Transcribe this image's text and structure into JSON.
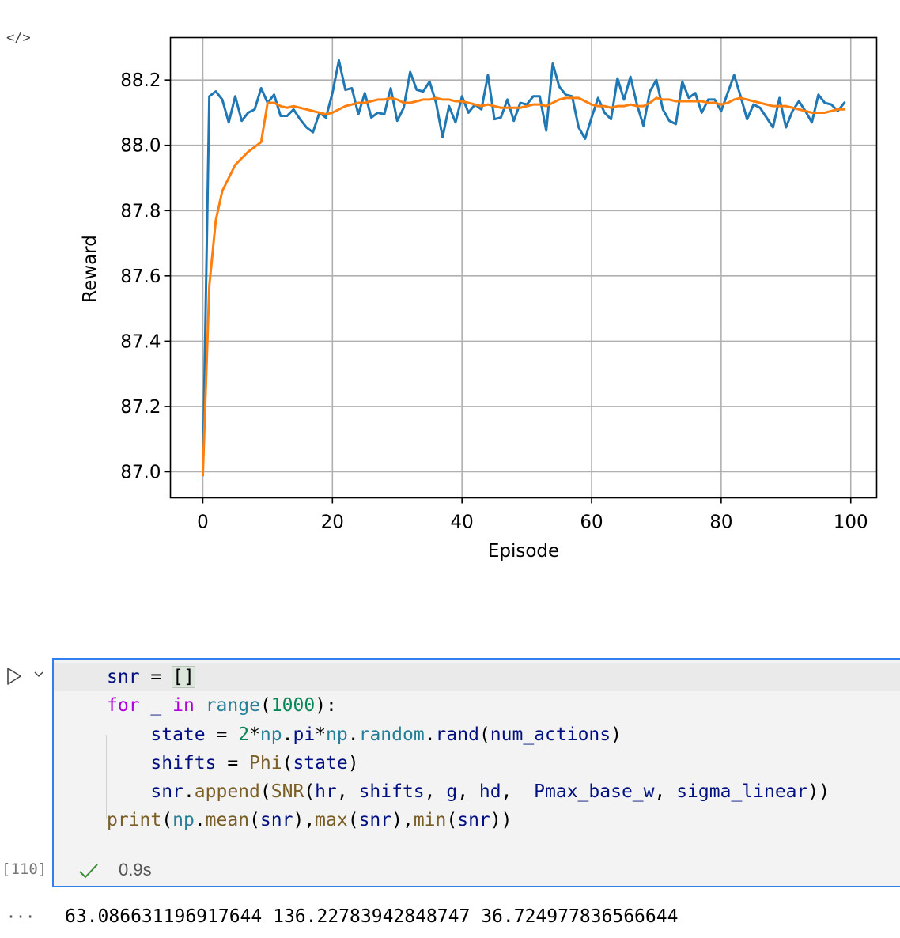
{
  "output_cell": {
    "code_icon": "code-icon",
    "chart_data": {
      "type": "line",
      "xlabel": "Episode",
      "ylabel": "Reward",
      "xlim": [
        -5,
        104
      ],
      "ylim": [
        86.92,
        88.33
      ],
      "xticks": [
        0,
        20,
        40,
        60,
        80,
        100
      ],
      "yticks": [
        87.0,
        87.2,
        87.4,
        87.6,
        87.8,
        88.0,
        88.2
      ],
      "ytick_labels": [
        "87.0",
        "87.2",
        "87.4",
        "87.6",
        "87.8",
        "88.0",
        "88.2"
      ],
      "grid": true,
      "series": [
        {
          "color": "#1f77b4",
          "x": [
            0,
            1,
            2,
            3,
            4,
            5,
            6,
            7,
            8,
            9,
            10,
            11,
            12,
            13,
            14,
            15,
            16,
            17,
            18,
            19,
            20,
            21,
            22,
            23,
            24,
            25,
            26,
            27,
            28,
            29,
            30,
            31,
            32,
            33,
            34,
            35,
            36,
            37,
            38,
            39,
            40,
            41,
            42,
            43,
            44,
            45,
            46,
            47,
            48,
            49,
            50,
            51,
            52,
            53,
            54,
            55,
            56,
            57,
            58,
            59,
            60,
            61,
            62,
            63,
            64,
            65,
            66,
            67,
            68,
            69,
            70,
            71,
            72,
            73,
            74,
            75,
            76,
            77,
            78,
            79,
            80,
            81,
            82,
            83,
            84,
            85,
            86,
            87,
            88,
            89,
            90,
            91,
            92,
            93,
            94,
            95,
            96,
            97,
            98,
            99
          ],
          "y": [
            86.99,
            88.15,
            88.165,
            88.14,
            88.07,
            88.15,
            88.075,
            88.1,
            88.11,
            88.175,
            88.13,
            88.155,
            88.09,
            88.09,
            88.11,
            88.08,
            88.055,
            88.04,
            88.1,
            88.085,
            88.16,
            88.26,
            88.17,
            88.175,
            88.095,
            88.16,
            88.085,
            88.1,
            88.095,
            88.175,
            88.075,
            88.115,
            88.225,
            88.17,
            88.165,
            88.195,
            88.13,
            88.025,
            88.12,
            88.07,
            88.15,
            88.1,
            88.125,
            88.11,
            88.215,
            88.08,
            88.085,
            88.14,
            88.075,
            88.13,
            88.125,
            88.15,
            88.15,
            88.045,
            88.25,
            88.18,
            88.155,
            88.15,
            88.055,
            88.02,
            88.085,
            88.145,
            88.1,
            88.08,
            88.205,
            88.14,
            88.21,
            88.125,
            88.06,
            88.165,
            88.2,
            88.11,
            88.075,
            88.065,
            88.195,
            88.145,
            88.16,
            88.1,
            88.14,
            88.14,
            88.105,
            88.16,
            88.215,
            88.15,
            88.08,
            88.125,
            88.115,
            88.085,
            88.055,
            88.145,
            88.055,
            88.105,
            88.135,
            88.105,
            88.07,
            88.155,
            88.13,
            88.125,
            88.105,
            88.13
          ]
        },
        {
          "color": "#ff7f0e",
          "x": [
            0,
            1,
            2,
            3,
            4,
            5,
            6,
            7,
            8,
            9,
            10,
            11,
            12,
            13,
            14,
            15,
            16,
            17,
            18,
            19,
            20,
            21,
            22,
            23,
            24,
            25,
            26,
            27,
            28,
            29,
            30,
            31,
            32,
            33,
            34,
            35,
            36,
            37,
            38,
            39,
            40,
            41,
            42,
            43,
            44,
            45,
            46,
            47,
            48,
            49,
            50,
            51,
            52,
            53,
            54,
            55,
            56,
            57,
            58,
            59,
            60,
            61,
            62,
            63,
            64,
            65,
            66,
            67,
            68,
            69,
            70,
            71,
            72,
            73,
            74,
            75,
            76,
            77,
            78,
            79,
            80,
            81,
            82,
            83,
            84,
            85,
            86,
            87,
            88,
            89,
            90,
            91,
            92,
            93,
            94,
            95,
            96,
            97,
            98,
            99
          ],
          "y": [
            86.99,
            87.57,
            87.77,
            87.86,
            87.9,
            87.94,
            87.96,
            87.98,
            87.995,
            88.01,
            88.13,
            88.13,
            88.12,
            88.115,
            88.12,
            88.115,
            88.11,
            88.105,
            88.1,
            88.095,
            88.1,
            88.11,
            88.12,
            88.125,
            88.13,
            88.13,
            88.135,
            88.14,
            88.14,
            88.145,
            88.14,
            88.13,
            88.13,
            88.135,
            88.14,
            88.14,
            88.145,
            88.14,
            88.14,
            88.135,
            88.135,
            88.13,
            88.125,
            88.12,
            88.125,
            88.12,
            88.115,
            88.115,
            88.115,
            88.115,
            88.12,
            88.125,
            88.125,
            88.12,
            88.13,
            88.14,
            88.145,
            88.145,
            88.145,
            88.135,
            88.125,
            88.12,
            88.12,
            88.115,
            88.12,
            88.12,
            88.125,
            88.12,
            88.12,
            88.13,
            88.145,
            88.14,
            88.14,
            88.135,
            88.135,
            88.135,
            88.135,
            88.135,
            88.13,
            88.13,
            88.125,
            88.13,
            88.14,
            88.145,
            88.14,
            88.135,
            88.13,
            88.125,
            88.12,
            88.12,
            88.12,
            88.115,
            88.11,
            88.105,
            88.1,
            88.1,
            88.1,
            88.105,
            88.11,
            88.11
          ]
        }
      ]
    }
  },
  "code_cell": {
    "run_icon": "play-icon",
    "chevron_icon": "chevron-down-icon",
    "lines": [
      "snr = []",
      "for _ in range(1000):",
      "    state = 2*np.pi*np.random.rand(num_actions)",
      "    shifts = Phi(state)",
      "    snr.append(SNR(hr, shifts, g, hd,  Pmax_base_w, sigma_linear))",
      "print(np.mean(snr),max(snr),min(snr))"
    ],
    "execution_count": "[110]",
    "status_icon": "check-icon",
    "status_color": "#388a34",
    "duration": "0.9s",
    "output_prefix": "···",
    "output_text": "63.086631196917644 136.22783942848747 36.724977836566644"
  }
}
